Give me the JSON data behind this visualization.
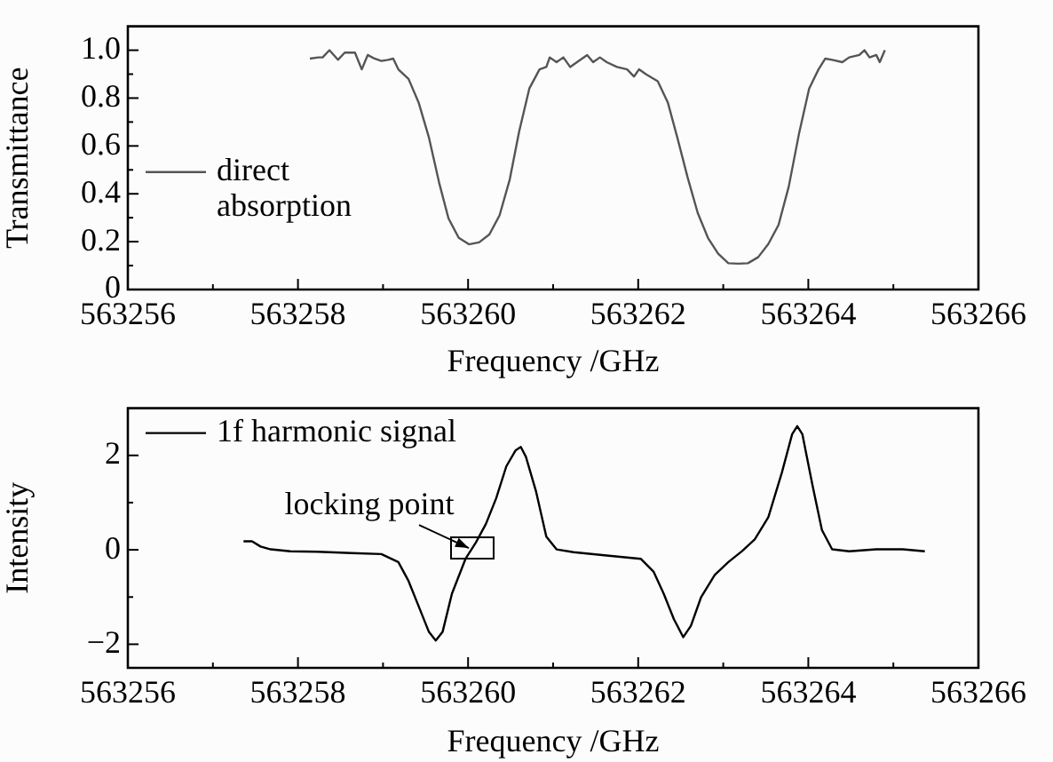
{
  "chart_data": [
    {
      "type": "line",
      "xlabel": "Frequency /GHz",
      "ylabel": "Transmittance",
      "legend": "left",
      "xlim": [
        563256,
        563266
      ],
      "ylim": [
        0,
        1.1
      ],
      "xticks": [
        563256,
        {
          "value": 563257,
          "label": null
        },
        563258,
        {
          "value": 563259,
          "label": null
        },
        563260,
        {
          "value": 563261,
          "label": null
        },
        563262,
        {
          "value": 563263,
          "label": null
        },
        563264,
        {
          "value": 563265,
          "label": null
        },
        563266
      ],
      "yticks": [
        0,
        {
          "value": 0.1,
          "label": null
        },
        0.2,
        {
          "value": 0.3,
          "label": null
        },
        0.4,
        {
          "value": 0.5,
          "label": null
        },
        0.6,
        {
          "value": 0.7,
          "label": null
        },
        0.8,
        {
          "value": 0.9,
          "label": null
        },
        {
          "value": 1,
          "label": "1.0"
        }
      ],
      "series": [
        {
          "name": "direct absorption",
          "color": "#555555",
          "x": [
            563258.14,
            563258.24,
            563258.29,
            563258.37,
            563258.47,
            563258.55,
            563258.67,
            563258.75,
            563258.82,
            563258.9,
            563258.98,
            563259.06,
            563259.12,
            563259.18,
            563259.3,
            563259.42,
            563259.54,
            563259.66,
            563259.77,
            563259.89,
            563260.01,
            563260.13,
            563260.25,
            563260.37,
            563260.49,
            563260.6,
            563260.72,
            563260.84,
            563260.92,
            563260.96,
            563261.04,
            563261.12,
            563261.2,
            563261.28,
            563261.4,
            563261.47,
            563261.55,
            563261.63,
            563261.75,
            563261.87,
            563261.95,
            563262.01,
            563262.09,
            563262.23,
            563262.35,
            563262.46,
            563262.58,
            563262.7,
            563262.82,
            563262.94,
            563263.06,
            563263.18,
            563263.29,
            563263.41,
            563263.53,
            563263.65,
            563263.77,
            563263.89,
            563264.01,
            563264.12,
            563264.2,
            563264.28,
            563264.4,
            563264.48,
            563264.6,
            563264.66,
            563264.72,
            563264.8,
            563264.84,
            563264.9
          ],
          "values": [
            0.965,
            0.97,
            0.97,
            1.0,
            0.96,
            0.99,
            0.99,
            0.92,
            0.98,
            0.965,
            0.955,
            0.96,
            0.965,
            0.92,
            0.88,
            0.78,
            0.635,
            0.446,
            0.297,
            0.216,
            0.189,
            0.197,
            0.23,
            0.31,
            0.46,
            0.66,
            0.84,
            0.92,
            0.93,
            0.97,
            0.95,
            0.97,
            0.93,
            0.95,
            0.98,
            0.95,
            0.97,
            0.95,
            0.93,
            0.92,
            0.89,
            0.92,
            0.9,
            0.87,
            0.78,
            0.635,
            0.47,
            0.32,
            0.216,
            0.15,
            0.11,
            0.108,
            0.11,
            0.135,
            0.19,
            0.27,
            0.43,
            0.65,
            0.84,
            0.92,
            0.965,
            0.96,
            0.95,
            0.97,
            0.98,
            1.0,
            0.97,
            0.98,
            0.95,
            1.0
          ]
        }
      ]
    },
    {
      "type": "line",
      "xlabel": "Frequency /GHz",
      "ylabel": "Intensity",
      "legend": "top left",
      "xlim": [
        563256,
        563266
      ],
      "ylim": [
        -2.5,
        3
      ],
      "xticks": [
        563256,
        {
          "value": 563257,
          "label": null
        },
        563258,
        {
          "value": 563259,
          "label": null
        },
        563260,
        {
          "value": 563261,
          "label": null
        },
        563262,
        {
          "value": 563263,
          "label": null
        },
        563264,
        {
          "value": 563265,
          "label": null
        },
        563266
      ],
      "yticks": [
        {
          "value": -2,
          "label": "−2"
        },
        {
          "value": -1,
          "label": null
        },
        0,
        {
          "value": 1,
          "label": null
        },
        2
      ],
      "annotations": [
        {
          "text": "locking point",
          "x": 563260.05,
          "y": 0
        }
      ],
      "series": [
        {
          "name": "1f harmonic signal",
          "color": "#000000",
          "x": [
            563257.36,
            563257.46,
            563257.56,
            563257.68,
            563257.91,
            563258.23,
            563258.63,
            563258.98,
            563259.18,
            563259.3,
            563259.42,
            563259.54,
            563259.62,
            563259.7,
            563259.81,
            563259.97,
            563260.09,
            563260.21,
            563260.33,
            563260.45,
            563260.56,
            563260.62,
            563260.68,
            563260.8,
            563260.92,
            563261.04,
            563261.24,
            563261.63,
            563262.03,
            563262.18,
            563262.3,
            563262.42,
            563262.53,
            563262.62,
            563262.74,
            563262.9,
            563263.06,
            563263.22,
            563263.37,
            563263.53,
            563263.69,
            563263.81,
            563263.87,
            563263.93,
            563264.05,
            563264.16,
            563264.28,
            563264.48,
            563264.8,
            563265.11,
            563265.37
          ],
          "values": [
            0.18,
            0.18,
            0.07,
            0.01,
            -0.03,
            -0.04,
            -0.07,
            -0.09,
            -0.26,
            -0.66,
            -1.2,
            -1.74,
            -1.92,
            -1.74,
            -0.93,
            -0.19,
            0.15,
            0.55,
            1.09,
            1.77,
            2.11,
            2.18,
            1.97,
            1.23,
            0.28,
            0.01,
            -0.05,
            -0.12,
            -0.19,
            -0.46,
            -0.93,
            -1.47,
            -1.85,
            -1.61,
            -1.0,
            -0.53,
            -0.26,
            -0.03,
            0.22,
            0.69,
            1.64,
            2.45,
            2.62,
            2.45,
            1.36,
            0.42,
            0.01,
            -0.03,
            0.01,
            0.01,
            -0.03
          ]
        }
      ]
    }
  ]
}
